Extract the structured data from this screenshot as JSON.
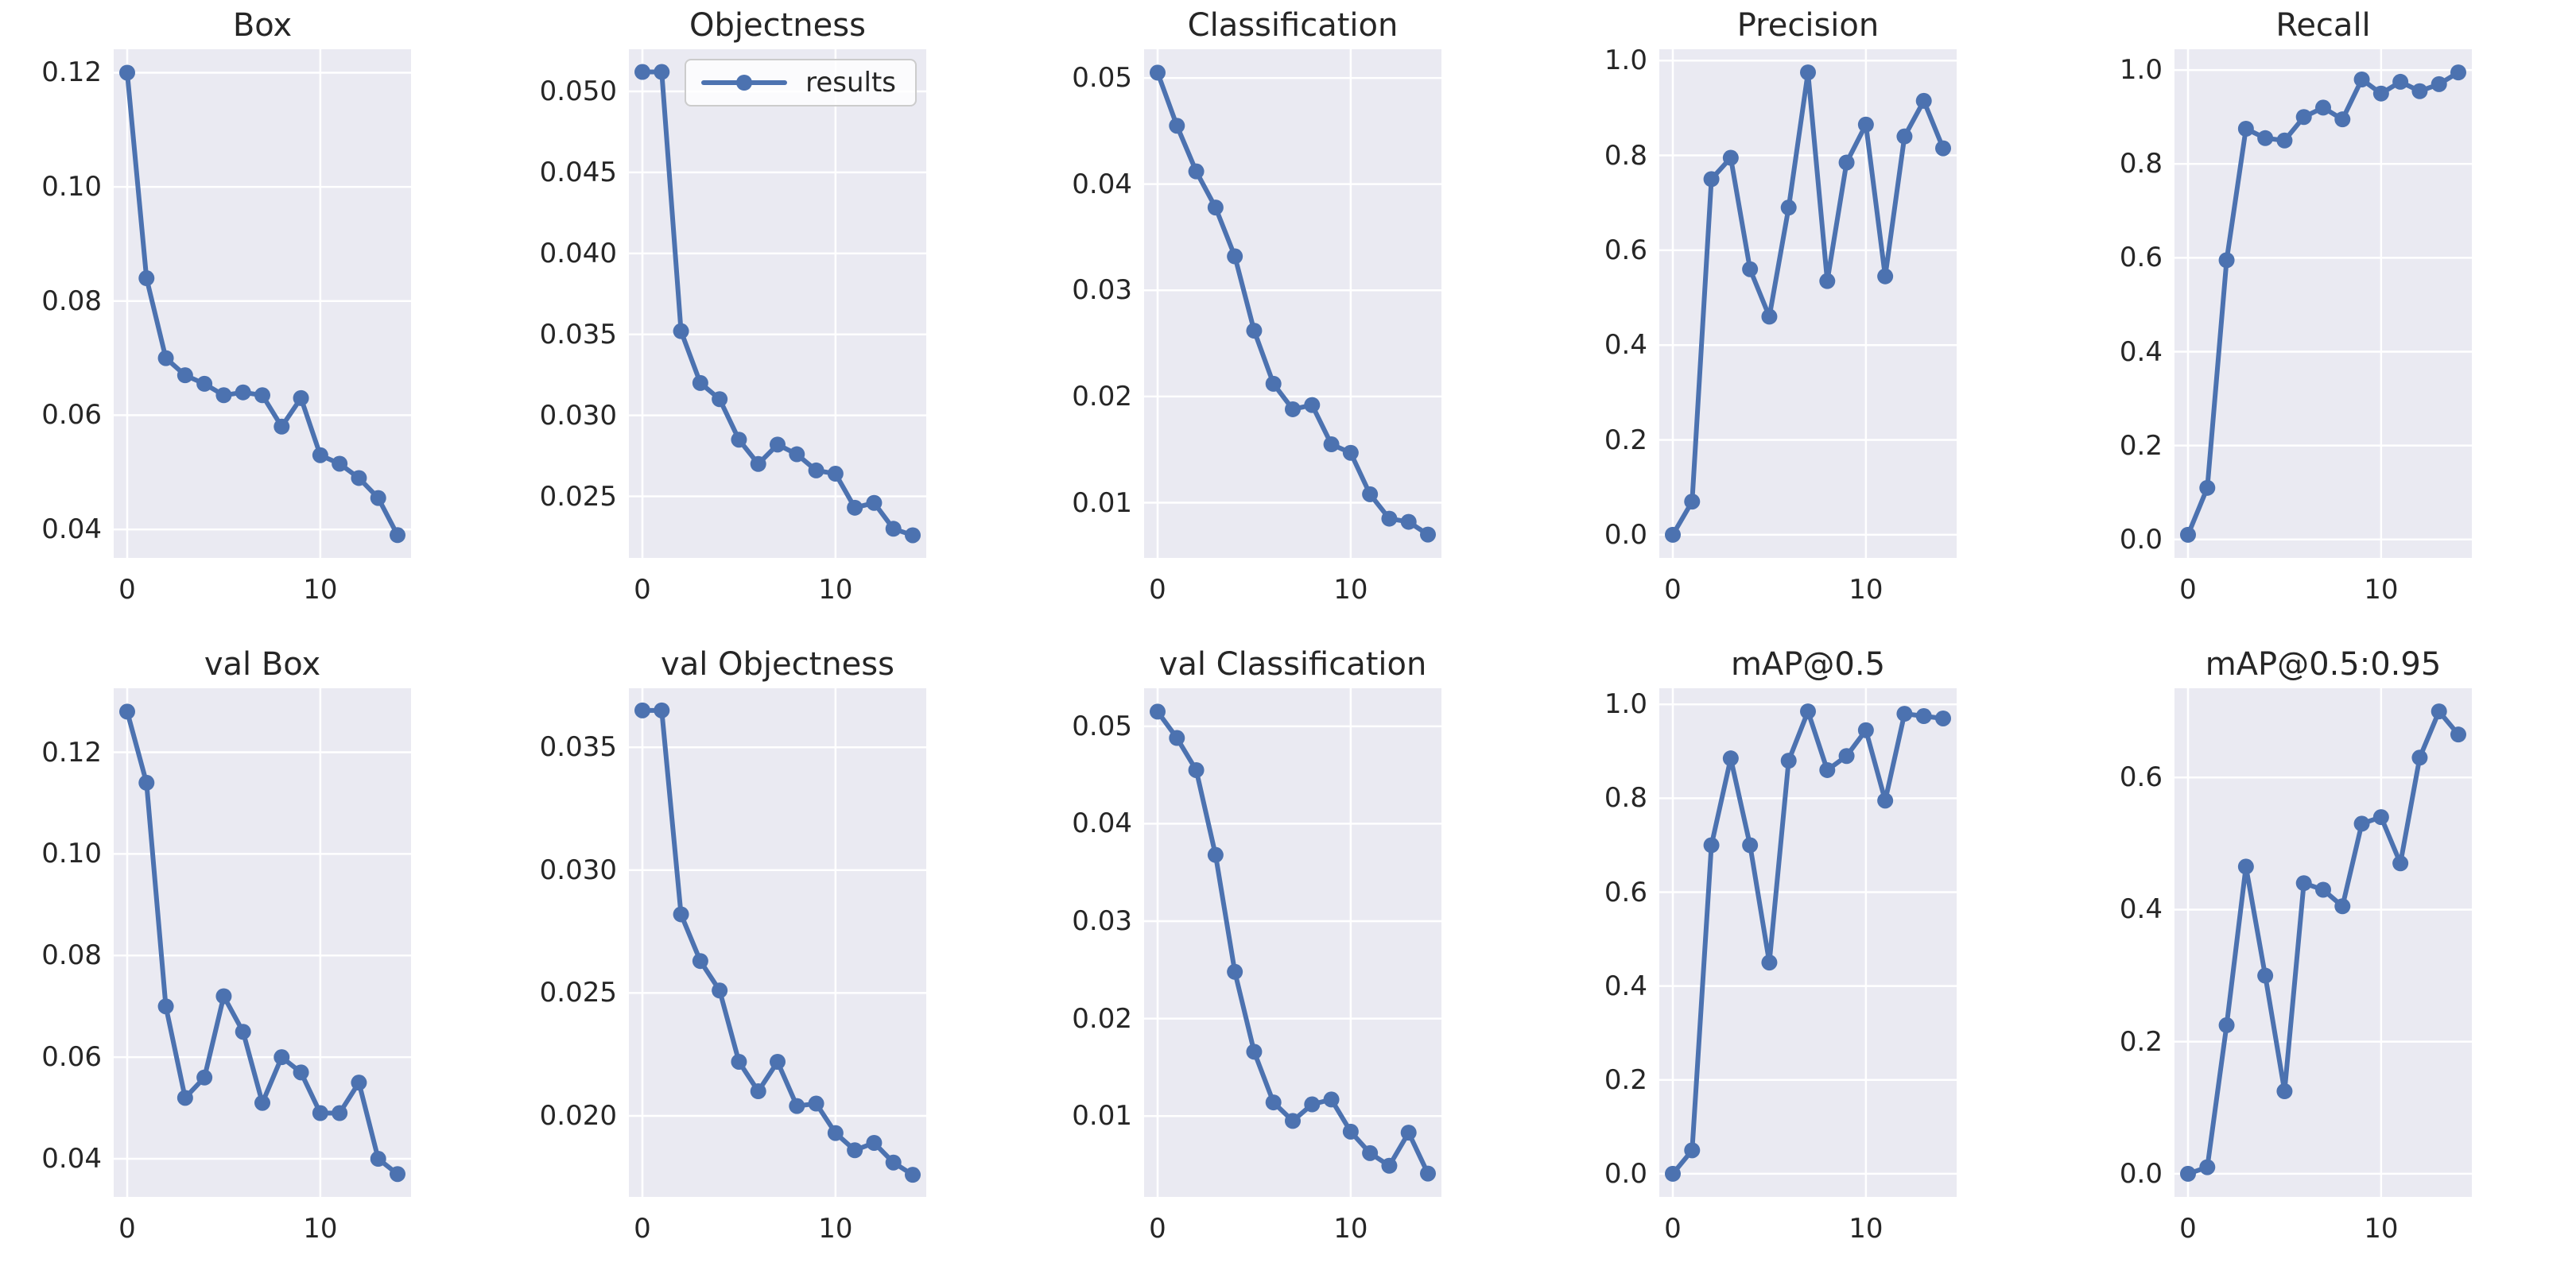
{
  "figure_title": "training results figure",
  "style": {
    "line_color": "#4C72B0",
    "axes_background": "#EAEAF2",
    "grid_color": "#FFFFFF",
    "text_color": "#262626",
    "page_background": "#FFFFFF"
  },
  "legend": {
    "label": "results"
  },
  "chart_common": {
    "type": "line",
    "series_name": "results",
    "x": [
      0,
      1,
      2,
      3,
      4,
      5,
      6,
      7,
      8,
      9,
      10,
      11,
      12,
      13,
      14
    ],
    "xlim": [
      -0.7,
      14.7
    ],
    "xticks": [
      0,
      10
    ],
    "xtick_labels": [
      "0",
      "10"
    ],
    "grid": true,
    "marker": "circle"
  },
  "chart_data": [
    {
      "id": "box",
      "type": "line",
      "title": "Box",
      "y": [
        0.12,
        0.084,
        0.07,
        0.067,
        0.0655,
        0.0635,
        0.064,
        0.0635,
        0.058,
        0.063,
        0.053,
        0.0515,
        0.049,
        0.0455,
        0.039
      ],
      "ylim": [
        0.035,
        0.1241
      ],
      "yticks": [
        0.04,
        0.06,
        0.08,
        0.1,
        0.12
      ],
      "ytick_labels": [
        "0.04",
        "0.06",
        "0.08",
        "0.10",
        "0.12"
      ],
      "legend": false
    },
    {
      "id": "objectness",
      "type": "line",
      "title": "Objectness",
      "y": [
        0.0512,
        0.0512,
        0.0352,
        0.032,
        0.031,
        0.0285,
        0.027,
        0.0282,
        0.0276,
        0.0266,
        0.0264,
        0.0243,
        0.0246,
        0.023,
        0.0226
      ],
      "ylim": [
        0.0212,
        0.0526
      ],
      "yticks": [
        0.025,
        0.03,
        0.035,
        0.04,
        0.045,
        0.05
      ],
      "ytick_labels": [
        "0.025",
        "0.030",
        "0.035",
        "0.040",
        "0.045",
        "0.050"
      ],
      "legend": true
    },
    {
      "id": "classification",
      "type": "line",
      "title": "Classification",
      "y": [
        0.0505,
        0.0455,
        0.0412,
        0.0378,
        0.0332,
        0.0262,
        0.0212,
        0.0188,
        0.0192,
        0.0155,
        0.0147,
        0.0108,
        0.0085,
        0.0082,
        0.007
      ],
      "ylim": [
        0.0048,
        0.0527
      ],
      "yticks": [
        0.01,
        0.02,
        0.03,
        0.04,
        0.05
      ],
      "ytick_labels": [
        "0.01",
        "0.02",
        "0.03",
        "0.04",
        "0.05"
      ],
      "legend": false
    },
    {
      "id": "precision",
      "type": "line",
      "title": "Precision",
      "y": [
        0.0,
        0.07,
        0.75,
        0.795,
        0.56,
        0.46,
        0.69,
        0.975,
        0.535,
        0.785,
        0.865,
        0.545,
        0.84,
        0.915,
        0.815
      ],
      "ylim": [
        -0.0488,
        1.0238
      ],
      "yticks": [
        0.0,
        0.2,
        0.4,
        0.6,
        0.8,
        1.0
      ],
      "ytick_labels": [
        "0.0",
        "0.2",
        "0.4",
        "0.6",
        "0.8",
        "1.0"
      ],
      "legend": false
    },
    {
      "id": "recall",
      "type": "line",
      "title": "Recall",
      "y": [
        0.01,
        0.11,
        0.595,
        0.875,
        0.855,
        0.85,
        0.9,
        0.92,
        0.895,
        0.98,
        0.95,
        0.975,
        0.955,
        0.97,
        0.995
      ],
      "ylim": [
        -0.0393,
        1.0443
      ],
      "yticks": [
        0.0,
        0.2,
        0.4,
        0.6,
        0.8,
        1.0
      ],
      "ytick_labels": [
        "0.0",
        "0.2",
        "0.4",
        "0.6",
        "0.8",
        "1.0"
      ],
      "legend": false
    },
    {
      "id": "val-box",
      "type": "line",
      "title": "val Box",
      "y": [
        0.128,
        0.114,
        0.07,
        0.052,
        0.056,
        0.072,
        0.065,
        0.051,
        0.06,
        0.057,
        0.049,
        0.049,
        0.055,
        0.04,
        0.037
      ],
      "ylim": [
        0.0325,
        0.1326
      ],
      "yticks": [
        0.04,
        0.06,
        0.08,
        0.1,
        0.12
      ],
      "ytick_labels": [
        "0.04",
        "0.06",
        "0.08",
        "0.10",
        "0.12"
      ],
      "legend": false
    },
    {
      "id": "val-objectness",
      "type": "line",
      "title": "val Objectness",
      "y": [
        0.0365,
        0.0365,
        0.0282,
        0.0263,
        0.0251,
        0.0222,
        0.021,
        0.0222,
        0.0204,
        0.0205,
        0.0193,
        0.0186,
        0.0189,
        0.0181,
        0.0176
      ],
      "ylim": [
        0.0167,
        0.0374
      ],
      "yticks": [
        0.02,
        0.025,
        0.03,
        0.035
      ],
      "ytick_labels": [
        "0.020",
        "0.025",
        "0.030",
        "0.035"
      ],
      "legend": false
    },
    {
      "id": "val-classification",
      "type": "line",
      "title": "val Classification",
      "y": [
        0.0515,
        0.0488,
        0.0455,
        0.0368,
        0.0248,
        0.0166,
        0.0114,
        0.0095,
        0.0112,
        0.0117,
        0.0084,
        0.0062,
        0.0049,
        0.0083,
        0.0041
      ],
      "ylim": [
        0.0017,
        0.0539
      ],
      "yticks": [
        0.01,
        0.02,
        0.03,
        0.04,
        0.05
      ],
      "ytick_labels": [
        "0.01",
        "0.02",
        "0.03",
        "0.04",
        "0.05"
      ],
      "legend": false
    },
    {
      "id": "map05",
      "type": "line",
      "title": "mAP@0.5",
      "y": [
        0.0,
        0.05,
        0.7,
        0.885,
        0.7,
        0.45,
        0.88,
        0.985,
        0.86,
        0.89,
        0.945,
        0.795,
        0.98,
        0.975,
        0.97
      ],
      "ylim": [
        -0.0493,
        1.0343
      ],
      "yticks": [
        0.0,
        0.2,
        0.4,
        0.6,
        0.8,
        1.0
      ],
      "ytick_labels": [
        "0.0",
        "0.2",
        "0.4",
        "0.6",
        "0.8",
        "1.0"
      ],
      "legend": false
    },
    {
      "id": "map05-095",
      "type": "line",
      "title": "mAP@0.5:0.95",
      "y": [
        0.0,
        0.01,
        0.225,
        0.465,
        0.3,
        0.125,
        0.44,
        0.43,
        0.405,
        0.53,
        0.54,
        0.47,
        0.63,
        0.7,
        0.665
      ],
      "ylim": [
        -0.035,
        0.735
      ],
      "yticks": [
        0.0,
        0.2,
        0.4,
        0.6
      ],
      "ytick_labels": [
        "0.0",
        "0.2",
        "0.4",
        "0.6"
      ],
      "legend": false
    }
  ]
}
